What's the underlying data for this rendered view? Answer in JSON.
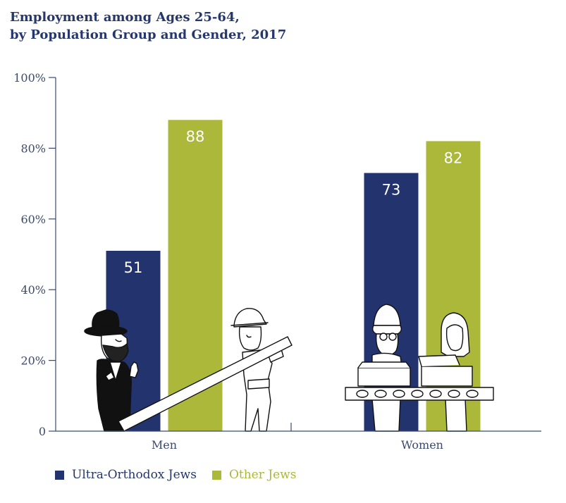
{
  "chart_data": {
    "type": "bar",
    "title_lines": [
      "Employment among Ages 25-64,",
      "by Population Group and Gender, 2017"
    ],
    "categories": [
      "Men",
      "Women"
    ],
    "series": [
      {
        "name": "Ultra-Orthodox Jews",
        "values": [
          51,
          73
        ],
        "color": "#23336e"
      },
      {
        "name": "Other Jews",
        "values": [
          88,
          82
        ],
        "color": "#abb83a"
      }
    ],
    "y_ticks": [
      {
        "value": 0,
        "label": "0"
      },
      {
        "value": 20,
        "label": "20%"
      },
      {
        "value": 40,
        "label": "40%"
      },
      {
        "value": 60,
        "label": "60%"
      },
      {
        "value": 80,
        "label": "80%"
      },
      {
        "value": 100,
        "label": "100%"
      }
    ],
    "ylim": [
      0,
      100
    ],
    "xlabel": "",
    "ylabel": "",
    "grid": false,
    "legend_position": "bottom-left",
    "illustrations": [
      "ultra-orthodox-man",
      "construction-worker",
      "woman-with-glasses",
      "woman-long-hair",
      "conveyor-belt"
    ]
  }
}
